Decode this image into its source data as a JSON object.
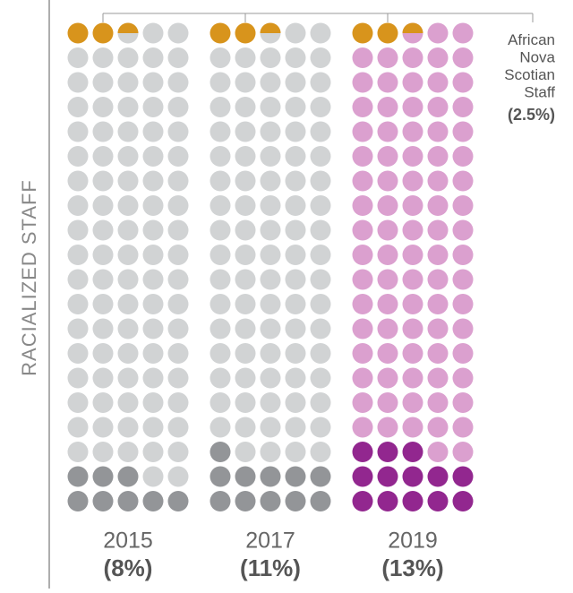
{
  "chart_data": {
    "type": "waffle",
    "ylabel": "RACIALIZED STAFF",
    "categories": [
      "2015",
      "2017",
      "2019"
    ],
    "values": [
      8,
      11,
      13
    ],
    "value_labels": [
      "(8%)",
      "(11%)",
      "(13%)"
    ],
    "colors": [
      "#939598",
      "#939598",
      "#92278f"
    ],
    "base_colors": [
      "#d1d3d4",
      "#d1d3d4",
      "#dba0cf"
    ],
    "highlight": {
      "name": "African Nova Scotian Staff",
      "value": 2.5,
      "value_label": "(2.5%)",
      "color": "#d8941c"
    }
  }
}
